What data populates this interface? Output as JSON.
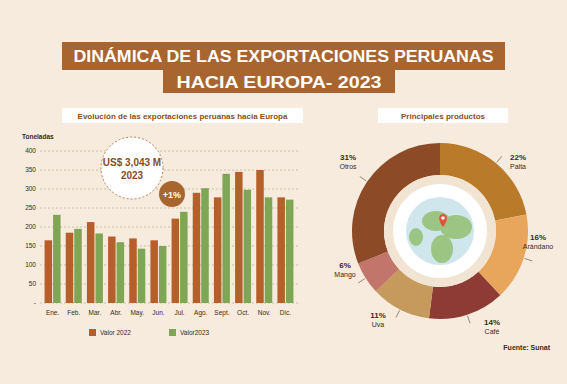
{
  "header": {
    "title": "DINÁMICA DE LAS EXPORTACIONES PERUANAS",
    "subtitle": "HACIA  EUROPA- 2023"
  },
  "chart_data": [
    {
      "type": "bar",
      "title": "Evolución de las exportaciones peruanas hacia Europa",
      "y_label": "Toneladas",
      "categories": [
        "Ene.",
        "Feb.",
        "Mar.",
        "Abr.",
        "May.",
        "Jun.",
        "Jul.",
        "Ago.",
        "Sept.",
        "Oct.",
        "Nov.",
        "Dic."
      ],
      "series": [
        {
          "name": "Valor 2022",
          "color": "#b5602b",
          "values": [
            165,
            185,
            213,
            175,
            170,
            165,
            222,
            290,
            278,
            345,
            350,
            278
          ]
        },
        {
          "name": "Valor2023",
          "color": "#7ea655",
          "values": [
            232,
            195,
            183,
            160,
            143,
            150,
            240,
            302,
            340,
            298,
            278,
            272
          ]
        }
      ],
      "ylim": [
        0,
        400
      ],
      "yticks": [
        {
          "value": 0,
          "label": "-"
        },
        50,
        100,
        150,
        200,
        250,
        300,
        350,
        400
      ],
      "grid": true,
      "legend": "bottom",
      "annotations": [
        "US$ 3,043 M",
        "2023",
        "+1%"
      ]
    },
    {
      "type": "donut",
      "title": "Principales productos",
      "categories": [
        "Palta",
        "Arándano",
        "Café",
        "Uva",
        "Mango",
        "Otros"
      ],
      "values": [
        22,
        16,
        14,
        11,
        6,
        31
      ],
      "value_labels": [
        "22%",
        "16%",
        "14%",
        "11%",
        "6%",
        "31%"
      ],
      "colors": [
        "#b97a2a",
        "#e8a65c",
        "#8e3b36",
        "#c59a5c",
        "#c2756b",
        "#8d4a26"
      ],
      "data_labels": true
    }
  ],
  "source": "Fuente: Sunat"
}
